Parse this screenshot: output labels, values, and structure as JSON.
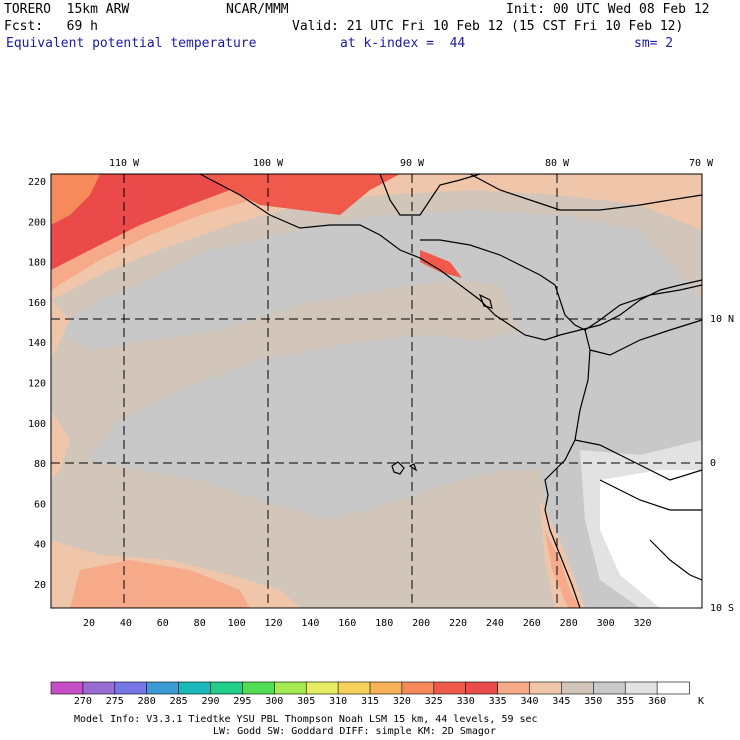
{
  "header": {
    "model": "TORERO  15km ARW",
    "center": "NCAR/MMM",
    "init": "Init: 00 UTC Wed 08 Feb 12",
    "fcst": "Fcst:   69 h",
    "valid": "Valid: 21 UTC Fri 10 Feb 12 (15 CST Fri 10 Feb 12)",
    "field": "Equivalent potential temperature",
    "level": "at k-index =  44",
    "smooth": "sm= 2"
  },
  "map": {
    "lon_labels": [
      "110 W",
      "100 W",
      "90 W",
      "80 W",
      "70 W"
    ],
    "lat_labels": [
      "10 N",
      "0",
      "10 S"
    ],
    "y_ticks": [
      "220",
      "200",
      "180",
      "160",
      "140",
      "120",
      "100",
      "80",
      "60",
      "40",
      "20"
    ],
    "x_ticks": [
      "20",
      "40",
      "60",
      "80",
      "100",
      "120",
      "140",
      "160",
      "180",
      "200",
      "220",
      "240",
      "260",
      "280",
      "300",
      "320"
    ]
  },
  "colorbar": {
    "unit": "K",
    "levels": [
      "270",
      "275",
      "280",
      "285",
      "290",
      "295",
      "300",
      "305",
      "310",
      "315",
      "320",
      "325",
      "330",
      "335",
      "340",
      "345",
      "350",
      "355",
      "360"
    ],
    "colors": [
      "#c64ec6",
      "#9a6ad6",
      "#7676e6",
      "#3a9ad6",
      "#1ab8b8",
      "#22cf8a",
      "#52de52",
      "#a6ea52",
      "#e6ee66",
      "#f6d25a",
      "#f6b25a",
      "#f68a5a",
      "#f05a4a",
      "#ea4a4a",
      "#f6aa8a",
      "#f0c6aa",
      "#d2c6ba",
      "#c8c8c8",
      "#e2e2e2",
      "#ffffff"
    ]
  },
  "footer": {
    "line1": "Model Info: V3.3.1   Tiedtke YSU PBL  Thompson    Noah LSM  15 km,   44 levels,   59 sec",
    "line2": "LW: Godd SW: Goddard DIFF: simple KM: 2D Smagor"
  }
}
